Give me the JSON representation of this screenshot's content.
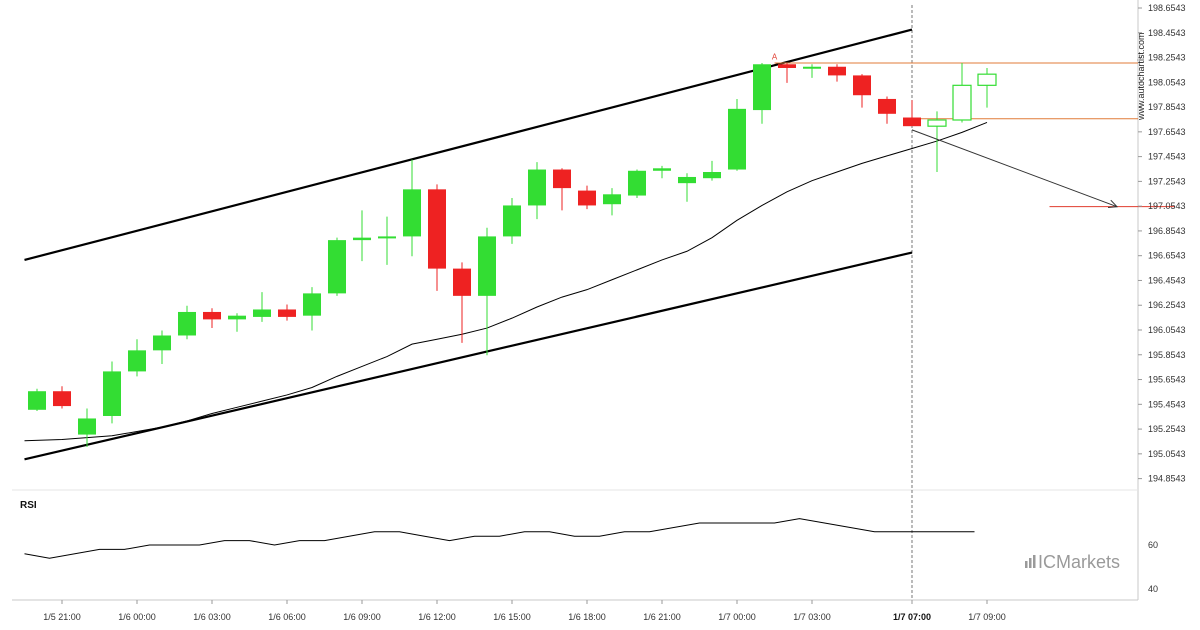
{
  "chart_data": {
    "type": "candlestick",
    "watermark": "www.autochartist.com",
    "brand": "ICMarkets",
    "colors": {
      "bull": "#33dd33",
      "bear": "#ee2222",
      "pattern_line": "#000000",
      "levels": "#e07b39",
      "target": "#e03b2e"
    },
    "price_axis": {
      "ylim": [
        194.7543,
        198.6543
      ],
      "ticks": [
        "198.6543",
        "198.4543",
        "198.2543",
        "198.0543",
        "197.8543",
        "197.6543",
        "197.4543",
        "197.2543",
        "197.0543",
        "196.8543",
        "196.6543",
        "196.4543",
        "196.2543",
        "196.0543",
        "195.8543",
        "195.6543",
        "195.4543",
        "195.2543",
        "195.0543",
        "194.8543"
      ]
    },
    "time_axis": {
      "bars_per_label": 3,
      "labels": [
        {
          "bar": 1,
          "text": "1/5 21:00"
        },
        {
          "bar": 4,
          "text": "1/6 00:00"
        },
        {
          "bar": 7,
          "text": "1/6 03:00"
        },
        {
          "bar": 10,
          "text": "1/6 06:00"
        },
        {
          "bar": 13,
          "text": "1/6 09:00"
        },
        {
          "bar": 16,
          "text": "1/6 12:00"
        },
        {
          "bar": 19,
          "text": "1/6 15:00"
        },
        {
          "bar": 22,
          "text": "1/6 18:00"
        },
        {
          "bar": 25,
          "text": "1/6 21:00"
        },
        {
          "bar": 28,
          "text": "1/7 00:00"
        },
        {
          "bar": 31,
          "text": "1/7 03:00"
        },
        {
          "bar": 35,
          "text": "1/7 07:00",
          "bold": true
        },
        {
          "bar": 38,
          "text": "1/7 09:00"
        }
      ]
    },
    "candles": [
      {
        "o": 195.41,
        "h": 195.58,
        "l": 195.4,
        "c": 195.56
      },
      {
        "o": 195.56,
        "h": 195.6,
        "l": 195.42,
        "c": 195.44
      },
      {
        "o": 195.21,
        "h": 195.42,
        "l": 195.11,
        "c": 195.34
      },
      {
        "o": 195.36,
        "h": 195.8,
        "l": 195.3,
        "c": 195.72
      },
      {
        "o": 195.72,
        "h": 195.98,
        "l": 195.68,
        "c": 195.89
      },
      {
        "o": 195.89,
        "h": 196.05,
        "l": 195.78,
        "c": 196.01
      },
      {
        "o": 196.01,
        "h": 196.25,
        "l": 195.98,
        "c": 196.2
      },
      {
        "o": 196.2,
        "h": 196.23,
        "l": 196.07,
        "c": 196.14
      },
      {
        "o": 196.14,
        "h": 196.19,
        "l": 196.04,
        "c": 196.17
      },
      {
        "o": 196.16,
        "h": 196.36,
        "l": 196.12,
        "c": 196.22
      },
      {
        "o": 196.22,
        "h": 196.26,
        "l": 196.13,
        "c": 196.16
      },
      {
        "o": 196.17,
        "h": 196.4,
        "l": 196.05,
        "c": 196.35
      },
      {
        "o": 196.35,
        "h": 196.8,
        "l": 196.33,
        "c": 196.78
      },
      {
        "o": 196.78,
        "h": 197.02,
        "l": 196.61,
        "c": 196.8
      },
      {
        "o": 196.8,
        "h": 196.97,
        "l": 196.58,
        "c": 196.81
      },
      {
        "o": 196.81,
        "h": 197.43,
        "l": 196.65,
        "c": 197.19
      },
      {
        "o": 197.19,
        "h": 197.23,
        "l": 196.37,
        "c": 196.55
      },
      {
        "o": 196.55,
        "h": 196.6,
        "l": 195.95,
        "c": 196.33
      },
      {
        "o": 196.33,
        "h": 196.88,
        "l": 195.85,
        "c": 196.81
      },
      {
        "o": 196.81,
        "h": 197.12,
        "l": 196.75,
        "c": 197.06
      },
      {
        "o": 197.06,
        "h": 197.41,
        "l": 196.95,
        "c": 197.35
      },
      {
        "o": 197.35,
        "h": 197.36,
        "l": 197.02,
        "c": 197.2
      },
      {
        "o": 197.18,
        "h": 197.22,
        "l": 197.03,
        "c": 197.06
      },
      {
        "o": 197.07,
        "h": 197.2,
        "l": 196.98,
        "c": 197.15
      },
      {
        "o": 197.14,
        "h": 197.35,
        "l": 197.12,
        "c": 197.34
      },
      {
        "o": 197.34,
        "h": 197.38,
        "l": 197.28,
        "c": 197.36
      },
      {
        "o": 197.24,
        "h": 197.32,
        "l": 197.09,
        "c": 197.29
      },
      {
        "o": 197.28,
        "h": 197.42,
        "l": 197.26,
        "c": 197.33
      },
      {
        "o": 197.35,
        "h": 197.92,
        "l": 197.34,
        "c": 197.84
      },
      {
        "o": 197.83,
        "h": 198.21,
        "l": 197.72,
        "c": 198.2
      },
      {
        "o": 198.2,
        "h": 198.21,
        "l": 198.05,
        "c": 198.17
      },
      {
        "o": 198.17,
        "h": 198.2,
        "l": 198.09,
        "c": 198.18
      },
      {
        "o": 198.18,
        "h": 198.2,
        "l": 198.06,
        "c": 198.11
      },
      {
        "o": 198.11,
        "h": 198.12,
        "l": 197.85,
        "c": 197.95
      },
      {
        "o": 197.92,
        "h": 197.94,
        "l": 197.72,
        "c": 197.8
      },
      {
        "o": 197.77,
        "h": 197.91,
        "l": 197.71,
        "c": 197.7
      },
      {
        "o": 197.7,
        "h": 197.82,
        "l": 197.33,
        "c": 197.75
      },
      {
        "o": 197.75,
        "h": 198.21,
        "l": 197.73,
        "c": 198.03
      },
      {
        "o": 198.03,
        "h": 198.17,
        "l": 197.85,
        "c": 198.12
      }
    ],
    "moving_average": [
      {
        "bar": -0.5,
        "v": 195.16
      },
      {
        "bar": 1,
        "v": 195.17
      },
      {
        "bar": 3,
        "v": 195.2
      },
      {
        "bar": 5,
        "v": 195.27
      },
      {
        "bar": 6,
        "v": 195.32
      },
      {
        "bar": 7,
        "v": 195.38
      },
      {
        "bar": 8,
        "v": 195.43
      },
      {
        "bar": 9,
        "v": 195.48
      },
      {
        "bar": 10,
        "v": 195.53
      },
      {
        "bar": 11,
        "v": 195.59
      },
      {
        "bar": 12,
        "v": 195.68
      },
      {
        "bar": 13,
        "v": 195.76
      },
      {
        "bar": 14,
        "v": 195.84
      },
      {
        "bar": 15,
        "v": 195.94
      },
      {
        "bar": 16,
        "v": 195.98
      },
      {
        "bar": 17,
        "v": 196.02
      },
      {
        "bar": 18,
        "v": 196.07
      },
      {
        "bar": 19,
        "v": 196.15
      },
      {
        "bar": 20,
        "v": 196.24
      },
      {
        "bar": 21,
        "v": 196.32
      },
      {
        "bar": 22,
        "v": 196.38
      },
      {
        "bar": 23,
        "v": 196.46
      },
      {
        "bar": 24,
        "v": 196.54
      },
      {
        "bar": 25,
        "v": 196.62
      },
      {
        "bar": 26,
        "v": 196.69
      },
      {
        "bar": 27,
        "v": 196.8
      },
      {
        "bar": 28,
        "v": 196.94
      },
      {
        "bar": 29,
        "v": 197.06
      },
      {
        "bar": 30,
        "v": 197.17
      },
      {
        "bar": 31,
        "v": 197.26
      },
      {
        "bar": 32,
        "v": 197.33
      },
      {
        "bar": 33,
        "v": 197.4
      },
      {
        "bar": 34,
        "v": 197.46
      },
      {
        "bar": 35,
        "v": 197.52
      },
      {
        "bar": 36,
        "v": 197.58
      },
      {
        "bar": 37,
        "v": 197.65
      },
      {
        "bar": 38,
        "v": 197.73
      }
    ],
    "pattern": {
      "upper_line": [
        {
          "bar": -0.5,
          "v": 196.62
        },
        {
          "bar": 35,
          "v": 198.48
        }
      ],
      "lower_line": [
        {
          "bar": -0.5,
          "v": 195.01
        },
        {
          "bar": 35,
          "v": 196.68
        }
      ],
      "breakout_bar": 35,
      "marker_label": "A",
      "marker": {
        "bar": 29.5,
        "v": 198.24
      },
      "resistance": {
        "from_bar": 29.5,
        "v": 198.21
      },
      "support": {
        "from_bar": 35,
        "v": 197.76
      },
      "forecast_arrow": {
        "from": {
          "bar": 35,
          "v": 197.67
        },
        "to": {
          "bar": 43.2,
          "v": 197.05
        }
      },
      "target": {
        "from_bar": 40.5,
        "to_bar": 45.5,
        "v": 197.05
      }
    },
    "rsi": {
      "label": "RSI",
      "ylim": [
        35,
        85
      ],
      "ticks": [
        "60",
        "40"
      ],
      "values": [
        {
          "bar": -0.5,
          "v": 56
        },
        {
          "bar": 0.5,
          "v": 54
        },
        {
          "bar": 2.5,
          "v": 58
        },
        {
          "bar": 3.5,
          "v": 58
        },
        {
          "bar": 4.5,
          "v": 60
        },
        {
          "bar": 6.5,
          "v": 60
        },
        {
          "bar": 7.5,
          "v": 62
        },
        {
          "bar": 8.5,
          "v": 62
        },
        {
          "bar": 9.5,
          "v": 60
        },
        {
          "bar": 10.5,
          "v": 62
        },
        {
          "bar": 11.5,
          "v": 62
        },
        {
          "bar": 13.5,
          "v": 66
        },
        {
          "bar": 14.5,
          "v": 66
        },
        {
          "bar": 15.5,
          "v": 64
        },
        {
          "bar": 16.5,
          "v": 62
        },
        {
          "bar": 17.5,
          "v": 64
        },
        {
          "bar": 18.5,
          "v": 64
        },
        {
          "bar": 19.5,
          "v": 66
        },
        {
          "bar": 20.5,
          "v": 66
        },
        {
          "bar": 21.5,
          "v": 64
        },
        {
          "bar": 22.5,
          "v": 64
        },
        {
          "bar": 23.5,
          "v": 66
        },
        {
          "bar": 24.5,
          "v": 66
        },
        {
          "bar": 26.5,
          "v": 70
        },
        {
          "bar": 29.5,
          "v": 70
        },
        {
          "bar": 30.5,
          "v": 72
        },
        {
          "bar": 31.5,
          "v": 70
        },
        {
          "bar": 33.5,
          "v": 66
        },
        {
          "bar": 37.5,
          "v": 66
        }
      ]
    }
  }
}
